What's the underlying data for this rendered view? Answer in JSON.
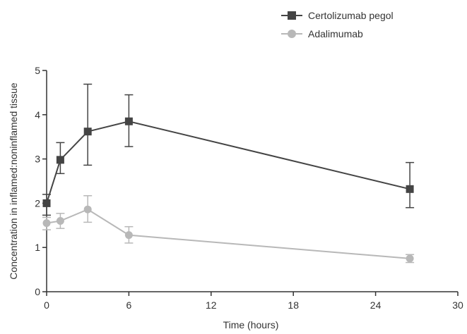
{
  "chart_data": {
    "type": "line",
    "title": "",
    "xlabel": "Time (hours)",
    "ylabel": "Concentration in inflamed:noninflamed tissue",
    "xlim": [
      0,
      30
    ],
    "ylim": [
      0,
      5
    ],
    "xticks": [
      0,
      6,
      12,
      18,
      24,
      30
    ],
    "yticks": [
      0,
      1,
      2,
      3,
      4,
      5
    ],
    "grid": false,
    "legend_position": "top-right",
    "series": [
      {
        "name": "Certolizumab pegol",
        "color": "#444444",
        "marker": "square",
        "x": [
          0,
          1,
          3,
          6,
          26.5
        ],
        "y": [
          2.0,
          2.98,
          3.62,
          3.85,
          2.32
        ],
        "err_low": [
          1.73,
          2.67,
          2.86,
          3.28,
          1.9
        ],
        "err_high": [
          2.2,
          3.37,
          4.69,
          4.45,
          2.92
        ]
      },
      {
        "name": "Adalimumab",
        "color": "#b8b8b8",
        "marker": "circle",
        "x": [
          0,
          1,
          3,
          6,
          26.5
        ],
        "y": [
          1.55,
          1.6,
          1.86,
          1.28,
          0.75
        ],
        "err_low": [
          1.4,
          1.43,
          1.57,
          1.1,
          0.66
        ],
        "err_high": [
          1.68,
          1.77,
          2.17,
          1.47,
          0.84
        ]
      }
    ]
  }
}
